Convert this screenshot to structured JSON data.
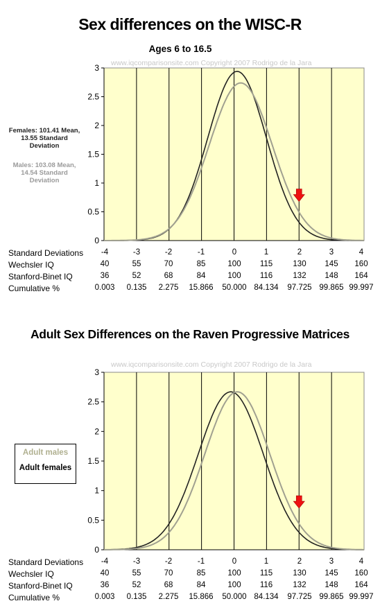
{
  "chart1": {
    "title": "Sex differences on the WISC-R",
    "subtitle": "Ages 6 to 16.5",
    "watermark": "www.iqcomparisonsite.com Copyright 2007 Rodrigo de la Jara",
    "legend_females": [
      "Females: 101.41 Mean,",
      "13.55 Standard",
      "Deviation"
    ],
    "legend_males": [
      "Males: 103.08 Mean,",
      "14.54 Standard",
      "Deviation"
    ]
  },
  "chart2": {
    "title": "Adult Sex Differences on the Raven Progressive Matrices",
    "watermark": "www.iqcomparisonsite.com Copyright 2007 Rodrigo de la Jara",
    "legend_males": "Adult males",
    "legend_females": "Adult females"
  },
  "table": {
    "row_labels": [
      "Standard Deviations",
      "Wechsler IQ",
      "Stanford-Binet IQ",
      "Cumulative %"
    ],
    "rows": [
      [
        "-4",
        "-3",
        "-2",
        "-1",
        "0",
        "1",
        "2",
        "3",
        "4"
      ],
      [
        "40",
        "55",
        "70",
        "85",
        "100",
        "115",
        "130",
        "145",
        "160"
      ],
      [
        "36",
        "52",
        "68",
        "84",
        "100",
        "116",
        "132",
        "148",
        "164"
      ],
      [
        "0.003",
        "0.135",
        "2.275",
        "15.866",
        "50.000",
        "84.134",
        "97.725",
        "99.865",
        "99.997"
      ]
    ]
  },
  "colors": {
    "plot_bg": "#ffffcc",
    "females": "#222222",
    "males": "#a0a090",
    "males_legend_text": "#b0b090",
    "arrow": "#ee1111"
  },
  "chart_data": [
    {
      "type": "line",
      "title": "Sex differences on the WISC-R",
      "subtitle": "Ages 6 to 16.5",
      "x_ticks": [
        -4,
        -3,
        -2,
        -1,
        0,
        1,
        2,
        3,
        4
      ],
      "y_ticks": [
        0,
        0.5,
        1,
        1.5,
        2,
        2.5,
        3
      ],
      "xlim": [
        -4,
        4
      ],
      "ylim": [
        0,
        3
      ],
      "grid": "vertical lines at each standard deviation",
      "marker": {
        "type": "arrow",
        "x": 2,
        "color": "red"
      },
      "series": [
        {
          "name": "Females",
          "mean_iq": 101.41,
          "sd_iq": 13.55,
          "peak": 2.94,
          "style": "dark"
        },
        {
          "name": "Males",
          "mean_iq": 103.08,
          "sd_iq": 14.54,
          "peak": 2.74,
          "style": "light"
        }
      ]
    },
    {
      "type": "line",
      "title": "Adult Sex Differences on the Raven Progressive Matrices",
      "x_ticks": [
        -4,
        -3,
        -2,
        -1,
        0,
        1,
        2,
        3,
        4
      ],
      "y_ticks": [
        0,
        0.5,
        1,
        1.5,
        2,
        2.5,
        3
      ],
      "xlim": [
        -4,
        4
      ],
      "ylim": [
        0,
        3
      ],
      "grid": "vertical lines at each standard deviation",
      "legend": "left",
      "marker": {
        "type": "arrow",
        "x": 2,
        "color": "red"
      },
      "series": [
        {
          "name": "Adult females",
          "mean_sd": -0.1,
          "sd": 1.0,
          "peak": 2.67,
          "style": "dark"
        },
        {
          "name": "Adult males",
          "mean_sd": 0.1,
          "sd": 1.0,
          "peak": 2.67,
          "style": "light"
        }
      ]
    }
  ]
}
